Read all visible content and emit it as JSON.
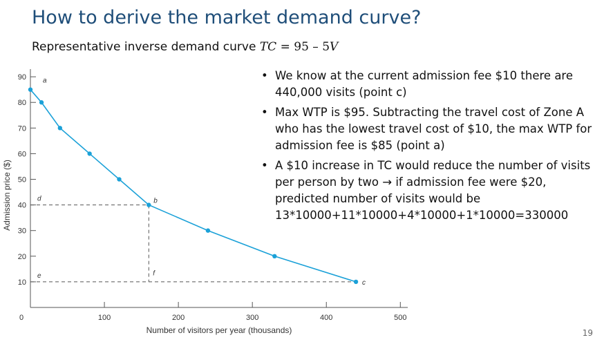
{
  "slide": {
    "title": "How to derive the market demand curve?",
    "subtitle_text": "Representative inverse demand curve ",
    "equation": {
      "lhs": "TC",
      "op": "=",
      "rhs_const": "95",
      "minus": "–",
      "rhs_var_coef": "5",
      "rhs_var": "V"
    },
    "bullets": [
      "We know at the current admission fee $10 there are 440,000 visits (point c)",
      "Max WTP is $95. Subtracting the travel cost of Zone A who has the lowest travel cost of $10, the max WTP for admission fee is $85 (point a)",
      "A $10 increase in TC would reduce the number of visits per person by two → if admission fee were $20, predicted number of visits would be 13*10000+11*10000+4*10000+1*10000=330000"
    ],
    "bullet_symbol": "•",
    "page_number": "19"
  },
  "chart_data": {
    "type": "line",
    "xlabel": "Number of visitors per year (thousands)",
    "ylabel": "Admission price ($)",
    "xlim": [
      0,
      510
    ],
    "ylim": [
      0,
      93
    ],
    "x_ticks": [
      100,
      200,
      300,
      400,
      500
    ],
    "y_ticks": [
      10,
      20,
      30,
      40,
      50,
      60,
      70,
      80,
      90
    ],
    "origin_label": "0",
    "grid": false,
    "color": "#1ba1d8",
    "series": [
      {
        "x": [
          0,
          15,
          40,
          80,
          120,
          160,
          240,
          330,
          440
        ],
        "y": [
          85,
          80,
          70,
          60,
          50,
          40,
          30,
          20,
          10
        ]
      }
    ],
    "point_labels": [
      {
        "text": "a",
        "x": 0,
        "y": 85
      },
      {
        "text": "b",
        "x": 160,
        "y": 40
      },
      {
        "text": "c",
        "x": 440,
        "y": 10
      }
    ],
    "axis_labels": [
      {
        "text": "d",
        "y": 40
      },
      {
        "text": "e",
        "y": 10
      },
      {
        "text": "f",
        "x": 160
      }
    ],
    "dashed_lines": [
      {
        "from": [
          0,
          40
        ],
        "to": [
          160,
          40
        ]
      },
      {
        "from": [
          160,
          40
        ],
        "to": [
          160,
          10
        ]
      },
      {
        "from": [
          0,
          10
        ],
        "to": [
          440,
          10
        ]
      }
    ]
  }
}
